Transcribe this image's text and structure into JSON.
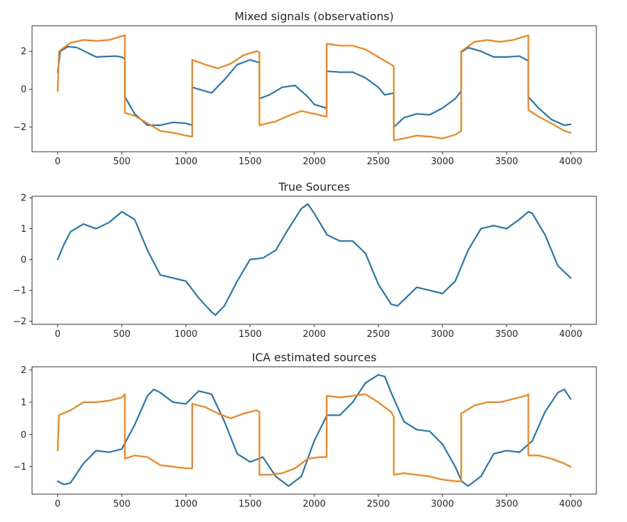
{
  "chart_data": [
    {
      "type": "line",
      "title": "Mixed signals (observations)",
      "xlabel": "",
      "ylabel": "",
      "xlim": [
        -200,
        4200
      ],
      "ylim": [
        -3.3,
        3.35
      ],
      "xticks": [
        0,
        500,
        1000,
        1500,
        2000,
        2500,
        3000,
        3500,
        4000
      ],
      "yticks": [
        -2,
        0,
        2
      ],
      "grid": false,
      "legend": "none",
      "series": [
        {
          "color": "#1f77b4",
          "x": [
            0,
            20,
            80,
            150,
            300,
            450,
            500,
            524,
            524,
            600,
            700,
            800,
            900,
            1000,
            1049,
            1049,
            1100,
            1200,
            1300,
            1400,
            1500,
            1573,
            1573,
            1650,
            1750,
            1850,
            1950,
            2000,
            2097,
            2097,
            2200,
            2300,
            2400,
            2500,
            2550,
            2621,
            2621,
            2700,
            2800,
            2900,
            3000,
            3100,
            3146,
            3146,
            3200,
            3300,
            3400,
            3500,
            3600,
            3670,
            3670,
            3750,
            3850,
            3950,
            4000
          ],
          "values": [
            0.9,
            2.0,
            2.25,
            2.2,
            1.7,
            1.75,
            1.7,
            1.6,
            -0.4,
            -1.3,
            -1.9,
            -1.9,
            -1.75,
            -1.8,
            -1.9,
            0.1,
            0.0,
            -0.2,
            0.5,
            1.3,
            1.55,
            1.4,
            -0.5,
            -0.3,
            0.1,
            0.2,
            -0.4,
            -0.8,
            -1.0,
            0.95,
            0.9,
            0.9,
            0.6,
            0.1,
            -0.3,
            -0.2,
            -2.0,
            -1.5,
            -1.3,
            -1.35,
            -1.0,
            -0.5,
            -0.1,
            1.95,
            2.2,
            2.0,
            1.7,
            1.7,
            1.75,
            1.5,
            -0.4,
            -1.0,
            -1.6,
            -1.9,
            -1.85
          ]
        },
        {
          "color": "#ff7f0e",
          "x": [
            0,
            10,
            100,
            200,
            300,
            400,
            500,
            524,
            524,
            600,
            700,
            800,
            900,
            1000,
            1049,
            1049,
            1150,
            1250,
            1350,
            1450,
            1550,
            1573,
            1573,
            1700,
            1800,
            1900,
            2000,
            2097,
            2097,
            2200,
            2300,
            2400,
            2500,
            2600,
            2621,
            2621,
            2700,
            2800,
            2900,
            3000,
            3100,
            3146,
            3146,
            3250,
            3350,
            3450,
            3550,
            3650,
            3670,
            3670,
            3750,
            3850,
            3950,
            4000
          ],
          "values": [
            -0.1,
            2.0,
            2.45,
            2.6,
            2.55,
            2.6,
            2.8,
            2.85,
            -1.25,
            -1.4,
            -1.8,
            -2.2,
            -2.3,
            -2.45,
            -2.5,
            1.55,
            1.3,
            1.1,
            1.35,
            1.8,
            2.0,
            1.95,
            -1.9,
            -1.7,
            -1.4,
            -1.15,
            -1.3,
            -1.45,
            2.4,
            2.3,
            2.3,
            2.1,
            1.7,
            1.3,
            1.2,
            -2.7,
            -2.6,
            -2.45,
            -2.5,
            -2.6,
            -2.4,
            -2.2,
            2.0,
            2.5,
            2.6,
            2.5,
            2.6,
            2.8,
            2.85,
            -1.1,
            -1.45,
            -1.8,
            -2.2,
            -2.3
          ]
        }
      ]
    },
    {
      "type": "line",
      "title": "True Sources",
      "xlabel": "",
      "ylabel": "",
      "xlim": [
        -200,
        4200
      ],
      "ylim": [
        -2.1,
        2.05
      ],
      "xticks": [
        0,
        500,
        1000,
        1500,
        2000,
        2500,
        3000,
        3500,
        4000
      ],
      "yticks": [
        -2,
        -1,
        0,
        1,
        2
      ],
      "grid": false,
      "legend": "none",
      "series": [
        {
          "color": "#1f77b4",
          "x": [
            0,
            50,
            100,
            200,
            300,
            400,
            500,
            600,
            700,
            800,
            900,
            1000,
            1100,
            1200,
            1230,
            1300,
            1400,
            1500,
            1600,
            1700,
            1800,
            1900,
            1950,
            2000,
            2100,
            2200,
            2300,
            2400,
            2500,
            2600,
            2650,
            2700,
            2800,
            2900,
            3000,
            3100,
            3200,
            3300,
            3400,
            3500,
            3600,
            3670,
            3700,
            3800,
            3900,
            4000
          ],
          "values": [
            0.0,
            0.5,
            0.9,
            1.15,
            1.0,
            1.2,
            1.55,
            1.3,
            0.3,
            -0.5,
            -0.6,
            -0.7,
            -1.25,
            -1.7,
            -1.8,
            -1.5,
            -0.7,
            0.0,
            0.05,
            0.3,
            1.0,
            1.65,
            1.8,
            1.5,
            0.8,
            0.6,
            0.6,
            0.2,
            -0.8,
            -1.45,
            -1.5,
            -1.3,
            -0.9,
            -1.0,
            -1.1,
            -0.7,
            0.3,
            1.0,
            1.1,
            1.0,
            1.3,
            1.55,
            1.5,
            0.8,
            -0.2,
            -0.6
          ]
        }
      ]
    },
    {
      "type": "line",
      "title": "ICA estimated sources",
      "xlabel": "",
      "ylabel": "",
      "xlim": [
        -200,
        4200
      ],
      "ylim": [
        -1.85,
        2.1
      ],
      "xticks": [
        0,
        500,
        1000,
        1500,
        2000,
        2500,
        3000,
        3500,
        4000
      ],
      "yticks": [
        -1,
        0,
        1,
        2
      ],
      "grid": false,
      "legend": "none",
      "series": [
        {
          "color": "#1f77b4",
          "x": [
            0,
            50,
            100,
            200,
            300,
            400,
            500,
            600,
            700,
            750,
            800,
            900,
            1000,
            1100,
            1200,
            1300,
            1400,
            1500,
            1600,
            1700,
            1800,
            1900,
            2000,
            2100,
            2200,
            2300,
            2400,
            2500,
            2550,
            2600,
            2700,
            2800,
            2900,
            3000,
            3100,
            3150,
            3200,
            3300,
            3400,
            3500,
            3600,
            3700,
            3800,
            3900,
            3950,
            4000
          ],
          "values": [
            -1.45,
            -1.55,
            -1.5,
            -0.9,
            -0.5,
            -0.55,
            -0.45,
            0.3,
            1.2,
            1.4,
            1.3,
            1.0,
            0.95,
            1.35,
            1.25,
            0.4,
            -0.6,
            -0.85,
            -0.7,
            -1.3,
            -1.6,
            -1.3,
            -0.2,
            0.6,
            0.6,
            1.0,
            1.6,
            1.85,
            1.8,
            1.3,
            0.4,
            0.15,
            0.1,
            -0.3,
            -1.0,
            -1.45,
            -1.6,
            -1.3,
            -0.6,
            -0.5,
            -0.55,
            -0.2,
            0.7,
            1.3,
            1.4,
            1.1
          ]
        },
        {
          "color": "#ff7f0e",
          "x": [
            0,
            10,
            100,
            200,
            300,
            400,
            500,
            524,
            524,
            600,
            700,
            800,
            900,
            1000,
            1049,
            1049,
            1150,
            1250,
            1350,
            1450,
            1550,
            1573,
            1573,
            1650,
            1750,
            1850,
            1950,
            2050,
            2097,
            2097,
            2200,
            2300,
            2400,
            2500,
            2600,
            2621,
            2621,
            2700,
            2800,
            2900,
            3000,
            3100,
            3146,
            3146,
            3250,
            3350,
            3450,
            3550,
            3650,
            3670,
            3670,
            3750,
            3850,
            3950,
            4000
          ],
          "values": [
            -0.5,
            0.6,
            0.75,
            1.0,
            1.0,
            1.05,
            1.15,
            1.25,
            -0.75,
            -0.65,
            -0.7,
            -0.95,
            -1.0,
            -1.05,
            -1.05,
            0.95,
            0.85,
            0.65,
            0.5,
            0.65,
            0.75,
            0.7,
            -1.25,
            -1.25,
            -1.2,
            -1.05,
            -0.75,
            -0.7,
            -0.7,
            1.2,
            1.15,
            1.2,
            1.25,
            1.0,
            0.7,
            0.55,
            -1.25,
            -1.2,
            -1.25,
            -1.3,
            -1.4,
            -1.45,
            -1.45,
            0.65,
            0.9,
            1.0,
            1.0,
            1.1,
            1.2,
            1.25,
            -0.65,
            -0.65,
            -0.75,
            -0.9,
            -1.0
          ]
        }
      ]
    }
  ]
}
